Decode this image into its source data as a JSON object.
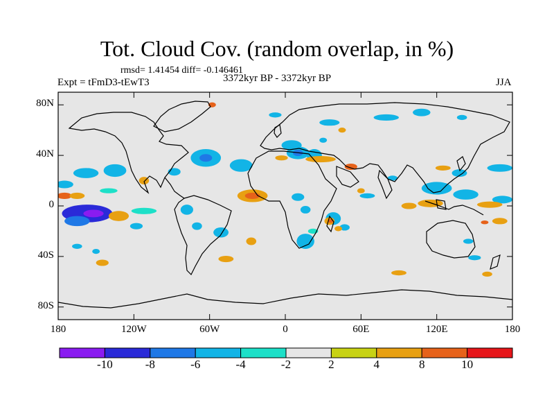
{
  "title": "Tot. Cloud Cov. (random overlap, in %)",
  "stats": "rmsd= 1.41454 diff= -0.146461",
  "experiment": "Expt = tFmD3-tEwT3",
  "period": "3372kyr BP - 3372kyr BP",
  "season": "JJA",
  "map": {
    "lat_range": [
      -90,
      90
    ],
    "lon_range": [
      -180,
      180
    ],
    "y_ticks": [
      {
        "label": "80N",
        "lat": 80
      },
      {
        "label": "40N",
        "lat": 40
      },
      {
        "label": "0",
        "lat": 0
      },
      {
        "label": "40S",
        "lat": -40
      },
      {
        "label": "80S",
        "lat": -80
      }
    ],
    "x_ticks": [
      {
        "label": "180",
        "lon": -180
      },
      {
        "label": "120W",
        "lon": -120
      },
      {
        "label": "60W",
        "lon": -60
      },
      {
        "label": "0",
        "lon": 0
      },
      {
        "label": "60E",
        "lon": 60
      },
      {
        "label": "120E",
        "lon": 120
      },
      {
        "label": "180",
        "lon": 180
      }
    ],
    "background_color": "#e6e6e6"
  },
  "colorbar": {
    "colors": [
      "#8a1cf0",
      "#2a2ad8",
      "#1f78e6",
      "#12b4e6",
      "#1de0c8",
      "#e6e6e6",
      "#c8d214",
      "#e8a012",
      "#e6621a",
      "#e6161a"
    ],
    "labels": [
      "-10",
      "-8",
      "-6",
      "-4",
      "-2",
      "2",
      "4",
      "8",
      "10"
    ]
  },
  "anomaly_patches": [
    {
      "lon": -157,
      "lat": -6,
      "rx": 20,
      "ry": 7,
      "level": -8
    },
    {
      "lon": -152,
      "lat": -6,
      "rx": 8,
      "ry": 3,
      "level": -10
    },
    {
      "lon": -165,
      "lat": -12,
      "rx": 10,
      "ry": 4,
      "level": -6
    },
    {
      "lon": -132,
      "lat": -8,
      "rx": 8,
      "ry": 4,
      "level": 4
    },
    {
      "lon": -158,
      "lat": 26,
      "rx": 10,
      "ry": 4,
      "level": -4
    },
    {
      "lon": -135,
      "lat": 28,
      "rx": 9,
      "ry": 5,
      "level": -4
    },
    {
      "lon": -175,
      "lat": 17,
      "rx": 7,
      "ry": 3,
      "level": -4
    },
    {
      "lon": -175,
      "lat": 8,
      "rx": 6,
      "ry": 2.5,
      "level": 8
    },
    {
      "lon": -165,
      "lat": 8,
      "rx": 6,
      "ry": 2.5,
      "level": 4
    },
    {
      "lon": -112,
      "lat": 20,
      "rx": 4,
      "ry": 3,
      "level": 4
    },
    {
      "lon": -88,
      "lat": 27,
      "rx": 5,
      "ry": 3,
      "level": -4
    },
    {
      "lon": -78,
      "lat": -3,
      "rx": 5,
      "ry": 4,
      "level": -4
    },
    {
      "lon": -70,
      "lat": -16,
      "rx": 4,
      "ry": 3,
      "level": -4
    },
    {
      "lon": -112,
      "lat": -4,
      "rx": 10,
      "ry": 2.5,
      "level": -2.5
    },
    {
      "lon": -63,
      "lat": 38,
      "rx": 12,
      "ry": 7,
      "level": -4
    },
    {
      "lon": -63,
      "lat": 38,
      "rx": 5,
      "ry": 3,
      "level": -6
    },
    {
      "lon": -35,
      "lat": 32,
      "rx": 9,
      "ry": 5,
      "level": -4
    },
    {
      "lon": -26,
      "lat": 8,
      "rx": 12,
      "ry": 5,
      "level": 4
    },
    {
      "lon": -26,
      "lat": 8,
      "rx": 6,
      "ry": 2.5,
      "level": 8
    },
    {
      "lon": -51,
      "lat": -21,
      "rx": 6,
      "ry": 4,
      "level": -4
    },
    {
      "lon": -47,
      "lat": -42,
      "rx": 6,
      "ry": 2.5,
      "level": 4
    },
    {
      "lon": -27,
      "lat": -28,
      "rx": 4,
      "ry": 3,
      "level": 4
    },
    {
      "lon": 5,
      "lat": 48,
      "rx": 8,
      "ry": 4,
      "level": -4
    },
    {
      "lon": 10,
      "lat": 42,
      "rx": 9,
      "ry": 5,
      "level": -4
    },
    {
      "lon": 10,
      "lat": 42,
      "rx": 4,
      "ry": 2.5,
      "level": -6
    },
    {
      "lon": 23,
      "lat": 40,
      "rx": 6,
      "ry": 5,
      "level": -4
    },
    {
      "lon": 28,
      "lat": 37,
      "rx": 12,
      "ry": 2.5,
      "level": 4
    },
    {
      "lon": 52,
      "lat": 31,
      "rx": 5,
      "ry": 2.5,
      "level": 8
    },
    {
      "lon": -3,
      "lat": 38,
      "rx": 5,
      "ry": 2,
      "level": 4
    },
    {
      "lon": 35,
      "lat": 66,
      "rx": 8,
      "ry": 2.5,
      "level": -4
    },
    {
      "lon": 80,
      "lat": 70,
      "rx": 10,
      "ry": 2.5,
      "level": -4
    },
    {
      "lon": 108,
      "lat": 74,
      "rx": 7,
      "ry": 3,
      "level": -4
    },
    {
      "lon": -8,
      "lat": 72,
      "rx": 5,
      "ry": 2,
      "level": -4
    },
    {
      "lon": -58,
      "lat": 80,
      "rx": 3,
      "ry": 2,
      "level": 8
    },
    {
      "lon": 10,
      "lat": 7,
      "rx": 5,
      "ry": 3,
      "level": -4
    },
    {
      "lon": 16,
      "lat": -3,
      "rx": 4,
      "ry": 3,
      "level": -4
    },
    {
      "lon": 16,
      "lat": -28,
      "rx": 7,
      "ry": 6,
      "level": -4
    },
    {
      "lon": 38,
      "lat": -10,
      "rx": 6,
      "ry": 5,
      "level": -4
    },
    {
      "lon": 35,
      "lat": -12,
      "rx": 4,
      "ry": 3,
      "level": 4
    },
    {
      "lon": 36,
      "lat": -12,
      "rx": 2,
      "ry": 1.5,
      "level": 8
    },
    {
      "lon": 47,
      "lat": -17,
      "rx": 4,
      "ry": 2.5,
      "level": -4
    },
    {
      "lon": 22,
      "lat": -20,
      "rx": 4,
      "ry": 2,
      "level": -2.5
    },
    {
      "lon": 42,
      "lat": -18,
      "rx": 3,
      "ry": 2,
      "level": 4
    },
    {
      "lon": 120,
      "lat": 14,
      "rx": 12,
      "ry": 5,
      "level": -4
    },
    {
      "lon": 143,
      "lat": 9,
      "rx": 10,
      "ry": 4,
      "level": -4
    },
    {
      "lon": 172,
      "lat": 5,
      "rx": 8,
      "ry": 3,
      "level": -4
    },
    {
      "lon": 115,
      "lat": 2,
      "rx": 10,
      "ry": 3,
      "level": 4
    },
    {
      "lon": 98,
      "lat": 0,
      "rx": 6,
      "ry": 2.5,
      "level": 4
    },
    {
      "lon": 162,
      "lat": 1,
      "rx": 10,
      "ry": 2.5,
      "level": 4
    },
    {
      "lon": 170,
      "lat": -12,
      "rx": 6,
      "ry": 2.5,
      "level": 4
    },
    {
      "lon": 158,
      "lat": -13,
      "rx": 3,
      "ry": 1.5,
      "level": 8
    },
    {
      "lon": 170,
      "lat": 30,
      "rx": 10,
      "ry": 3,
      "level": -4
    },
    {
      "lon": 138,
      "lat": 26,
      "rx": 6,
      "ry": 3,
      "level": -4
    },
    {
      "lon": 125,
      "lat": 30,
      "rx": 6,
      "ry": 2,
      "level": 4
    },
    {
      "lon": 145,
      "lat": -28,
      "rx": 4,
      "ry": 2,
      "level": -4
    },
    {
      "lon": 150,
      "lat": -41,
      "rx": 5,
      "ry": 2,
      "level": -4
    },
    {
      "lon": 90,
      "lat": -53,
      "rx": 6,
      "ry": 2,
      "level": 4
    },
    {
      "lon": 160,
      "lat": -54,
      "rx": 4,
      "ry": 2,
      "level": 4
    },
    {
      "lon": -145,
      "lat": -45,
      "rx": 5,
      "ry": 2.5,
      "level": 4
    },
    {
      "lon": -165,
      "lat": -32,
      "rx": 4,
      "ry": 2,
      "level": -4
    },
    {
      "lon": -150,
      "lat": -36,
      "rx": 3,
      "ry": 2,
      "level": -4
    },
    {
      "lon": -140,
      "lat": 12,
      "rx": 7,
      "ry": 2,
      "level": -2.5
    },
    {
      "lon": -118,
      "lat": -16,
      "rx": 5,
      "ry": 2.5,
      "level": -4
    },
    {
      "lon": 65,
      "lat": 8,
      "rx": 6,
      "ry": 2,
      "level": -4
    },
    {
      "lon": 85,
      "lat": 22,
      "rx": 4,
      "ry": 2,
      "level": -4
    },
    {
      "lon": 60,
      "lat": 12,
      "rx": 3,
      "ry": 2,
      "level": 4
    },
    {
      "lon": 30,
      "lat": 52,
      "rx": 3,
      "ry": 2,
      "level": -4
    },
    {
      "lon": 45,
      "lat": 60,
      "rx": 3,
      "ry": 2,
      "level": 4
    },
    {
      "lon": 140,
      "lat": 70,
      "rx": 4,
      "ry": 2,
      "level": -4
    }
  ]
}
